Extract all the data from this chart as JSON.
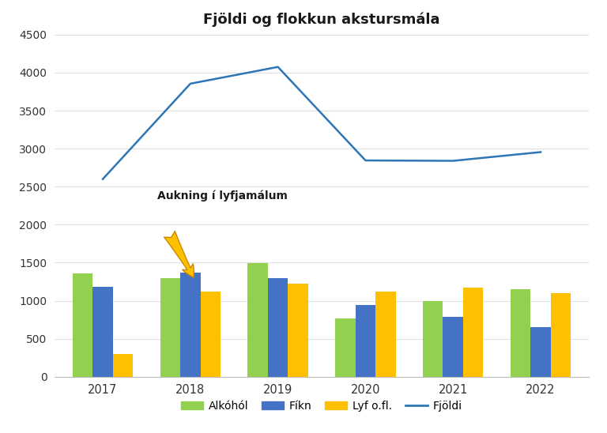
{
  "title": "Fjöldi og flokkun akstursmála",
  "years": [
    2017,
    2018,
    2019,
    2020,
    2021,
    2022
  ],
  "alkohol": [
    1355,
    1300,
    1490,
    770,
    1000,
    1150
  ],
  "fikn": [
    1185,
    1365,
    1295,
    945,
    790,
    655
  ],
  "lyf": [
    295,
    1120,
    1225,
    1115,
    1175,
    1100
  ],
  "fjoldi": [
    2600,
    3855,
    4075,
    2845,
    2840,
    2955
  ],
  "bar_colors": {
    "alkohol": "#92d050",
    "fikn": "#4472c4",
    "lyf": "#ffc000"
  },
  "line_color": "#2e75b6",
  "ylim": [
    0,
    4500
  ],
  "yticks": [
    0,
    500,
    1000,
    1500,
    2000,
    2500,
    3000,
    3500,
    4000,
    4500
  ],
  "annotation_text": "Aukning í lyfjamálum",
  "legend_labels": [
    "Alkóhól",
    "Fíkn",
    "Lyf o.fl.",
    "Fjöldi"
  ],
  "background_color": "#ffffff",
  "grid_color": "#e0e0e0"
}
